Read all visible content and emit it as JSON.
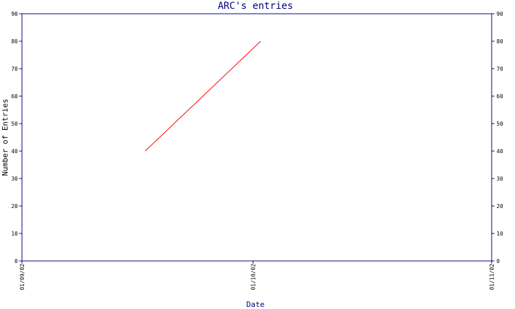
{
  "chart_data": {
    "type": "line",
    "title": "ARC's entries",
    "xlabel": "Date",
    "ylabel": "Number of Entries",
    "x_tick_labels": [
      "01/09/02",
      "01/10/02",
      "01/11/02"
    ],
    "y_ticks": [
      0,
      10,
      20,
      30,
      40,
      50,
      60,
      70,
      80,
      90
    ],
    "ylim": [
      0,
      90
    ],
    "xlim": [
      "2002-09-01",
      "2002-11-01"
    ],
    "grid": false,
    "series": [
      {
        "color": "#ff0000",
        "points": [
          {
            "x": "2002-09-17",
            "y": 40
          },
          {
            "x": "2002-10-02",
            "y": 80
          }
        ]
      }
    ],
    "colors": {
      "frame": "#000080",
      "title": "#000080",
      "series": "#ff0000"
    }
  }
}
